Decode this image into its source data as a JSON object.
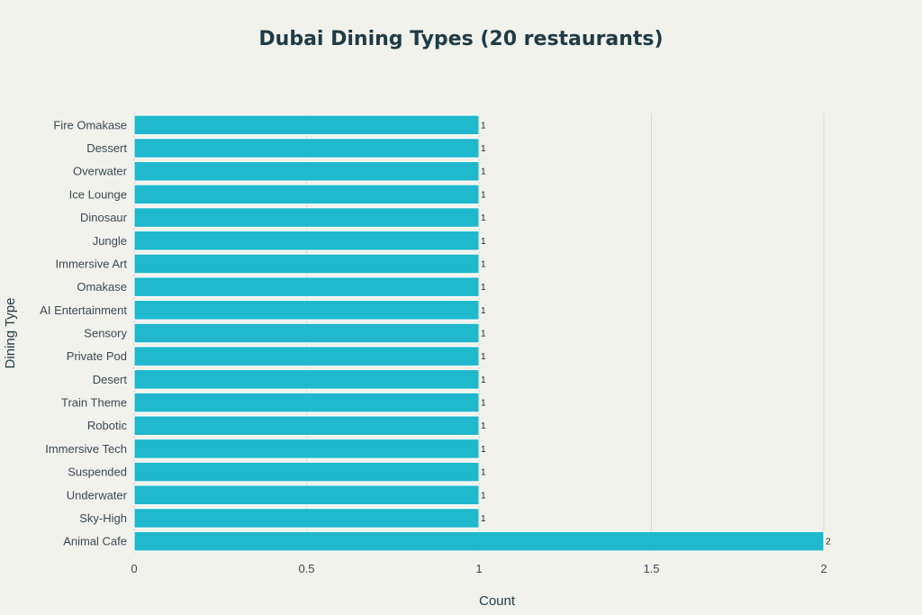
{
  "chart_data": {
    "type": "bar",
    "orientation": "horizontal",
    "title": "Dubai Dining Types (20 restaurants)",
    "xlabel": "Count",
    "ylabel": "Dining Type",
    "categories": [
      "Fire Omakase",
      "Dessert",
      "Overwater",
      "Ice Lounge",
      "Dinosaur",
      "Jungle",
      "Immersive Art",
      "Omakase",
      "AI Entertainment",
      "Sensory",
      "Private Pod",
      "Desert",
      "Train Theme",
      "Robotic",
      "Immersive Tech",
      "Suspended",
      "Underwater",
      "Sky-High",
      "Animal Cafe"
    ],
    "values": [
      1,
      1,
      1,
      1,
      1,
      1,
      1,
      1,
      1,
      1,
      1,
      1,
      1,
      1,
      1,
      1,
      1,
      1,
      2
    ],
    "xlim": [
      0,
      2
    ],
    "xticks": [
      0,
      0.5,
      1,
      1.5,
      2
    ],
    "xtick_labels": [
      "0",
      "0.5",
      "1",
      "1.5",
      "2"
    ],
    "grid": true,
    "bar_color": "#1fb8cd"
  }
}
